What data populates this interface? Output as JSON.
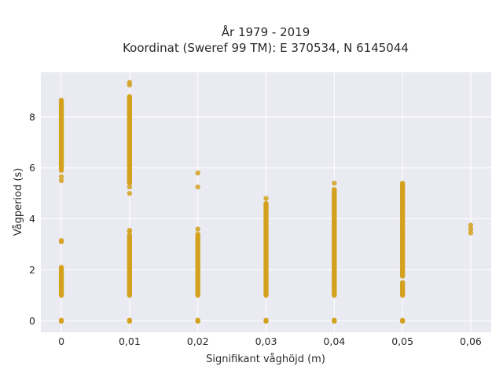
{
  "chart_data": {
    "type": "scatter",
    "title": [
      "År 1979 - 2019",
      "Koordinat (Sweref 99 TM): E 370534, N 6145044"
    ],
    "xlabel": "Signifikant våghöjd (m)",
    "ylabel": "Vågperiod (s)",
    "xlim": [
      -0.003,
      0.063
    ],
    "ylim": [
      -0.45,
      9.75
    ],
    "x_ticks": [
      {
        "value": 0,
        "label": "0"
      },
      {
        "value": 0.01,
        "label": "0,01"
      },
      {
        "value": 0.02,
        "label": "0,02"
      },
      {
        "value": 0.03,
        "label": "0,03"
      },
      {
        "value": 0.04,
        "label": "0,04"
      },
      {
        "value": 0.05,
        "label": "0,05"
      },
      {
        "value": 0.06,
        "label": "0,06"
      }
    ],
    "y_ticks": [
      {
        "value": 0,
        "label": "0"
      },
      {
        "value": 2,
        "label": "2"
      },
      {
        "value": 4,
        "label": "4"
      },
      {
        "value": 6,
        "label": "6"
      },
      {
        "value": 8,
        "label": "8"
      }
    ],
    "grid": true,
    "marker_color": "#D4A11E",
    "plot_background": "#EAEAF2",
    "series": [
      {
        "points": [],
        "columns": [
          {
            "x": 0,
            "ranges": [
              [
                -0.02,
                0.02
              ],
              [
                1.0,
                2.1
              ],
              [
                5.9,
                8.65
              ]
            ],
            "points": [
              3.1,
              3.15,
              5.5,
              5.65
            ]
          },
          {
            "x": 0.01,
            "ranges": [
              [
                -0.02,
                0.02
              ],
              [
                1.0,
                3.35
              ],
              [
                5.4,
                8.8
              ]
            ],
            "points": [
              3.5,
              3.55,
              5.0,
              5.25,
              9.25,
              9.35
            ]
          },
          {
            "x": 0.02,
            "ranges": [
              [
                -0.02,
                0.02
              ],
              [
                1.0,
                3.4
              ]
            ],
            "points": [
              3.6,
              5.25,
              5.8
            ]
          },
          {
            "x": 0.03,
            "ranges": [
              [
                -0.02,
                0.02
              ],
              [
                1.0,
                4.6
              ]
            ],
            "points": [
              4.8
            ]
          },
          {
            "x": 0.04,
            "ranges": [
              [
                -0.02,
                0.02
              ],
              [
                1.0,
                5.15
              ]
            ],
            "points": [
              5.4
            ]
          },
          {
            "x": 0.05,
            "ranges": [
              [
                -0.02,
                0.02
              ],
              [
                1.0,
                1.5
              ],
              [
                1.75,
                5.4
              ]
            ],
            "points": []
          },
          {
            "x": 0.06,
            "ranges": [],
            "points": [
              3.45,
              3.6,
              3.75
            ]
          }
        ]
      }
    ]
  }
}
